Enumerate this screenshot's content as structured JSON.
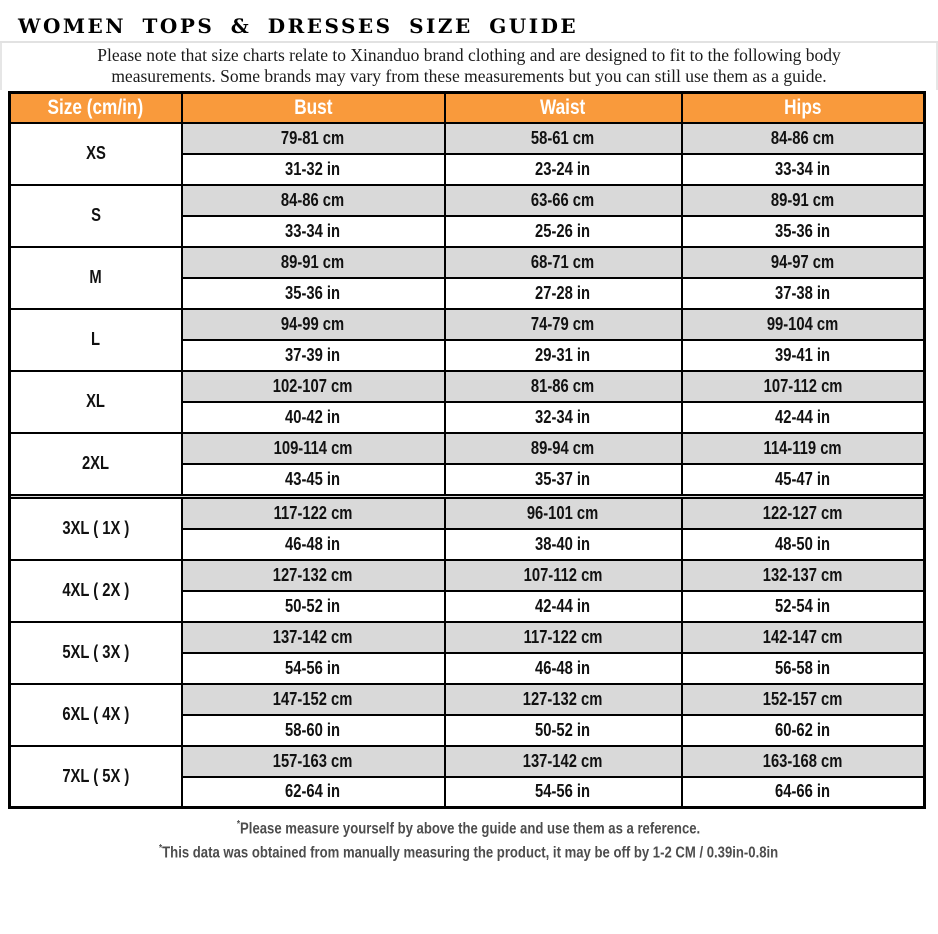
{
  "title": "WOMEN TOPS & DRESSES SIZE GUIDE",
  "note": {
    "line1": "Please note that size charts relate to  Xinanduo brand clothing and are designed to fit to the following body",
    "line2": "measurements. Some brands may vary from these measurements but you can still use them as a guide."
  },
  "colors": {
    "header_orange": "#F99A3C",
    "row_gray": "#D9D9D9",
    "border_black": "#000000",
    "footnote_gray": "#4d4d4d"
  },
  "table": {
    "headers": [
      "Size (cm/in)",
      "Bust",
      "Waist",
      "Hips"
    ],
    "rows": [
      {
        "size": "XS",
        "cm": [
          "79-81 cm",
          "58-61 cm",
          "84-86 cm"
        ],
        "in": [
          "31-32 in",
          "23-24 in",
          "33-34 in"
        ],
        "divider_after": false
      },
      {
        "size": "S",
        "cm": [
          "84-86 cm",
          "63-66 cm",
          "89-91 cm"
        ],
        "in": [
          "33-34 in",
          "25-26 in",
          "35-36 in"
        ],
        "divider_after": false
      },
      {
        "size": "M",
        "cm": [
          "89-91 cm",
          "68-71 cm",
          "94-97 cm"
        ],
        "in": [
          "35-36 in",
          "27-28 in",
          "37-38 in"
        ],
        "divider_after": false
      },
      {
        "size": "L",
        "cm": [
          "94-99 cm",
          "74-79 cm",
          "99-104 cm"
        ],
        "in": [
          "37-39 in",
          "29-31 in",
          "39-41 in"
        ],
        "divider_after": false
      },
      {
        "size": "XL",
        "cm": [
          "102-107 cm",
          "81-86 cm",
          "107-112 cm"
        ],
        "in": [
          "40-42 in",
          "32-34 in",
          "42-44 in"
        ],
        "divider_after": false
      },
      {
        "size": "2XL",
        "cm": [
          "109-114 cm",
          "89-94 cm",
          "114-119 cm"
        ],
        "in": [
          "43-45 in",
          "35-37 in",
          "45-47 in"
        ],
        "divider_after": true
      },
      {
        "size": "3XL ( 1X )",
        "cm": [
          "117-122 cm",
          "96-101 cm",
          "122-127 cm"
        ],
        "in": [
          "46-48 in",
          "38-40 in",
          "48-50 in"
        ],
        "divider_after": false
      },
      {
        "size": "4XL ( 2X )",
        "cm": [
          "127-132 cm",
          "107-112 cm",
          "132-137 cm"
        ],
        "in": [
          "50-52 in",
          "42-44 in",
          "52-54 in"
        ],
        "divider_after": false
      },
      {
        "size": "5XL ( 3X )",
        "cm": [
          "137-142 cm",
          "117-122 cm",
          "142-147 cm"
        ],
        "in": [
          "54-56 in",
          "46-48 in",
          "56-58 in"
        ],
        "divider_after": false
      },
      {
        "size": "6XL ( 4X )",
        "cm": [
          "147-152 cm",
          "127-132 cm",
          "152-157 cm"
        ],
        "in": [
          "58-60 in",
          "50-52 in",
          "60-62 in"
        ],
        "divider_after": false
      },
      {
        "size": "7XL ( 5X )",
        "cm": [
          "157-163 cm",
          "137-142 cm",
          "163-168 cm"
        ],
        "in": [
          "62-64 in",
          "54-56 in",
          "64-66 in"
        ],
        "divider_after": false
      }
    ]
  },
  "footnotes": [
    {
      "mark": "*",
      "text": "Please measure yourself by above the guide and use them as a reference."
    },
    {
      "mark": "*",
      "text": "This data was obtained from manually measuring the product, it may be off by 1-2 CM / 0.39in-0.8in"
    }
  ]
}
